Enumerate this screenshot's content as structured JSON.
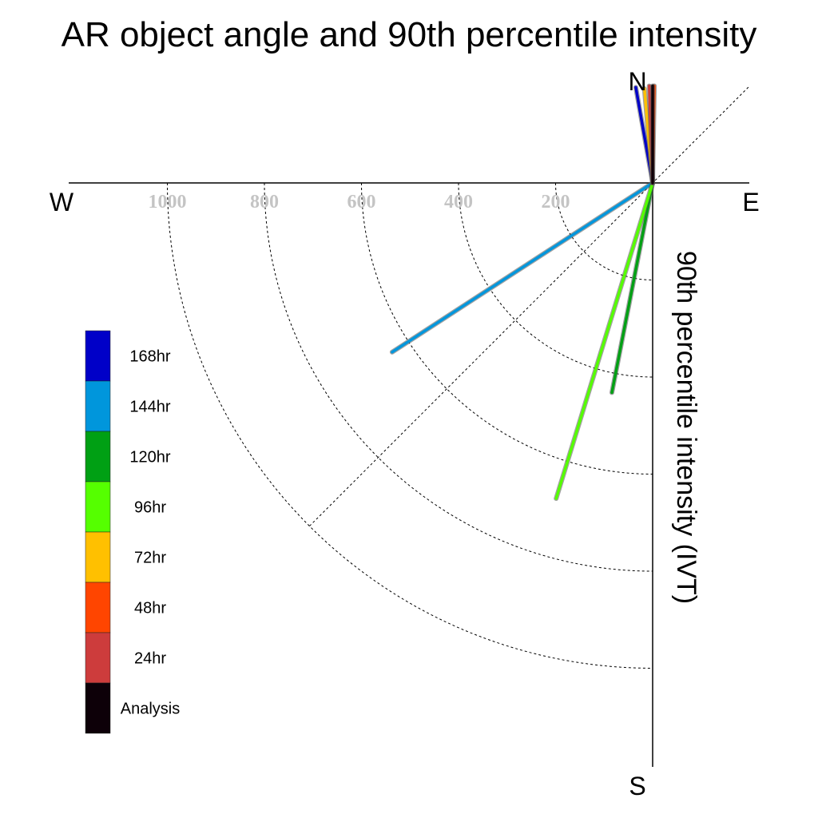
{
  "chart_data": {
    "type": "polar-vector",
    "title": "AR object angle and 90th percentile intensity",
    "ylabel": "90th percentile intensity (IVT)",
    "compass": {
      "north": "N",
      "east": "E",
      "south": "S",
      "west": "W"
    },
    "radial_ticks": [
      "200",
      "400",
      "600",
      "800",
      "1000"
    ],
    "radial_values": [
      200,
      400,
      600,
      800,
      1000
    ],
    "diagonal_angle_deg": 45,
    "series": [
      {
        "name": "Analysis",
        "color": "#0d0008",
        "angle_deg": 0,
        "value": 200
      },
      {
        "name": "24hr",
        "color": "#cd3c3c",
        "angle_deg": -2,
        "value": 200
      },
      {
        "name": "48hr",
        "color": "#ff4500",
        "angle_deg": 1,
        "value": 200
      },
      {
        "name": "72hr",
        "color": "#ffc000",
        "angle_deg": -5,
        "value": 195
      },
      {
        "name": "96hr",
        "color": "#55ff00",
        "angle_deg": 197,
        "value": 680
      },
      {
        "name": "120hr",
        "color": "#00a014",
        "angle_deg": 191,
        "value": 440
      },
      {
        "name": "144hr",
        "color": "#0096dc",
        "angle_deg": 237,
        "value": 640
      },
      {
        "name": "168hr",
        "color": "#0000c8",
        "angle_deg": -10,
        "value": 200
      }
    ],
    "legend": {
      "position": "left",
      "items": [
        {
          "label": "168hr",
          "color": "#0000c8"
        },
        {
          "label": "144hr",
          "color": "#0096dc"
        },
        {
          "label": "120hr",
          "color": "#00a014"
        },
        {
          "label": "96hr",
          "color": "#55ff00"
        },
        {
          "label": "72hr",
          "color": "#ffc000"
        },
        {
          "label": "48hr",
          "color": "#ff4500"
        },
        {
          "label": "24hr",
          "color": "#cd3c3c"
        },
        {
          "label": "Analysis",
          "color": "#0d0008"
        }
      ]
    }
  }
}
